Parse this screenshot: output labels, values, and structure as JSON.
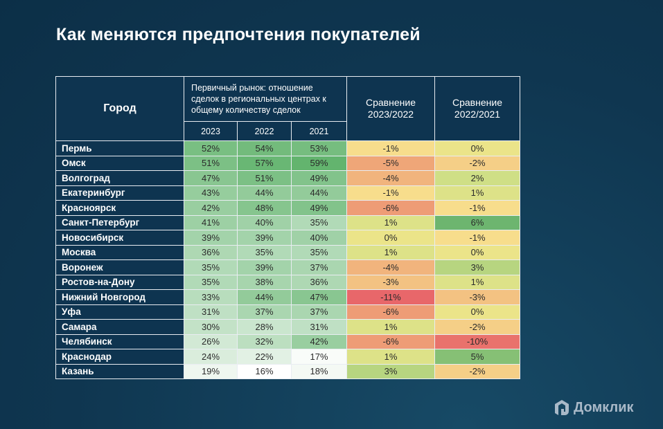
{
  "title": "Как меняются предпочтения покупателей",
  "table": {
    "city_header": "Город",
    "group_header": "Первичный рынок: отношение сделок в региональных центрах к общему количеству сделок",
    "years": [
      "2023",
      "2022",
      "2021"
    ],
    "compare_headers": [
      "Сравнение 2023/2022",
      "Сравнение 2022/2021"
    ],
    "rows": [
      {
        "city": "Пермь",
        "y2023": "52%",
        "y2022": "54%",
        "y2021": "53%",
        "c1": "-1%",
        "c2": "0%"
      },
      {
        "city": "Омск",
        "y2023": "51%",
        "y2022": "57%",
        "y2021": "59%",
        "c1": "-5%",
        "c2": "-2%"
      },
      {
        "city": "Волгоград",
        "y2023": "47%",
        "y2022": "51%",
        "y2021": "49%",
        "c1": "-4%",
        "c2": "2%"
      },
      {
        "city": "Екатеринбург",
        "y2023": "43%",
        "y2022": "44%",
        "y2021": "44%",
        "c1": "-1%",
        "c2": "1%"
      },
      {
        "city": "Красноярск",
        "y2023": "42%",
        "y2022": "48%",
        "y2021": "49%",
        "c1": "-6%",
        "c2": "-1%"
      },
      {
        "city": "Санкт-Петербург",
        "y2023": "41%",
        "y2022": "40%",
        "y2021": "35%",
        "c1": "1%",
        "c2": "6%"
      },
      {
        "city": "Новосибирск",
        "y2023": "39%",
        "y2022": "39%",
        "y2021": "40%",
        "c1": "0%",
        "c2": "-1%"
      },
      {
        "city": "Москва",
        "y2023": "36%",
        "y2022": "35%",
        "y2021": "35%",
        "c1": "1%",
        "c2": "0%"
      },
      {
        "city": "Воронеж",
        "y2023": "35%",
        "y2022": "39%",
        "y2021": "37%",
        "c1": "-4%",
        "c2": "3%"
      },
      {
        "city": "Ростов-на-Дону",
        "y2023": "35%",
        "y2022": "38%",
        "y2021": "36%",
        "c1": "-3%",
        "c2": "1%"
      },
      {
        "city": "Нижний Новгород",
        "y2023": "33%",
        "y2022": "44%",
        "y2021": "47%",
        "c1": "-11%",
        "c2": "-3%"
      },
      {
        "city": "Уфа",
        "y2023": "31%",
        "y2022": "37%",
        "y2021": "37%",
        "c1": "-6%",
        "c2": "0%"
      },
      {
        "city": "Самара",
        "y2023": "30%",
        "y2022": "28%",
        "y2021": "31%",
        "c1": "1%",
        "c2": "-2%"
      },
      {
        "city": "Челябинск",
        "y2023": "26%",
        "y2022": "32%",
        "y2021": "42%",
        "c1": "-6%",
        "c2": "-10%"
      },
      {
        "city": "Краснодар",
        "y2023": "24%",
        "y2022": "22%",
        "y2021": "17%",
        "c1": "1%",
        "c2": "5%"
      },
      {
        "city": "Казань",
        "y2023": "19%",
        "y2022": "16%",
        "y2021": "18%",
        "c1": "3%",
        "c2": "-2%"
      }
    ]
  },
  "logo": {
    "text": "Домклик",
    "icon": "house-icon"
  },
  "colors": {
    "background": "#0f3650",
    "header": "#0e3450",
    "share_high": "#5fb36b",
    "share_low": "#ffffff",
    "negative": "#e8676a",
    "neutral": "#eee48a",
    "positive": "#6cb56f"
  }
}
